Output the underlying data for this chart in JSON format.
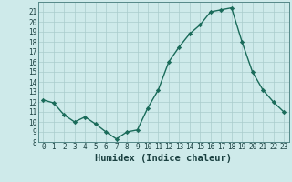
{
  "x": [
    0,
    1,
    2,
    3,
    4,
    5,
    6,
    7,
    8,
    9,
    10,
    11,
    12,
    13,
    14,
    15,
    16,
    17,
    18,
    19,
    20,
    21,
    22,
    23
  ],
  "y": [
    12.2,
    11.9,
    10.7,
    10.0,
    10.5,
    9.8,
    9.0,
    8.3,
    9.0,
    9.2,
    11.4,
    13.2,
    16.0,
    17.5,
    18.8,
    19.7,
    21.0,
    21.2,
    21.4,
    18.0,
    15.0,
    13.2,
    12.0,
    11.0
  ],
  "line_color": "#1a6b5a",
  "marker": "D",
  "marker_size": 2.2,
  "bg_color": "#ceeaea",
  "grid_color": "#aacccc",
  "xlabel": "Humidex (Indice chaleur)",
  "xlim": [
    -0.5,
    23.5
  ],
  "ylim": [
    8,
    22
  ],
  "yticks": [
    8,
    9,
    10,
    11,
    12,
    13,
    14,
    15,
    16,
    17,
    18,
    19,
    20,
    21
  ],
  "xticks": [
    0,
    1,
    2,
    3,
    4,
    5,
    6,
    7,
    8,
    9,
    10,
    11,
    12,
    13,
    14,
    15,
    16,
    17,
    18,
    19,
    20,
    21,
    22,
    23
  ],
  "xtick_labels": [
    "0",
    "1",
    "2",
    "3",
    "4",
    "5",
    "6",
    "7",
    "8",
    "9",
    "10",
    "11",
    "12",
    "13",
    "14",
    "15",
    "16",
    "17",
    "18",
    "19",
    "20",
    "21",
    "22",
    "23"
  ],
  "ytick_labels": [
    "8",
    "9",
    "10",
    "11",
    "12",
    "13",
    "14",
    "15",
    "16",
    "17",
    "18",
    "19",
    "20",
    "21"
  ],
  "tick_fontsize": 5.5,
  "xlabel_fontsize": 7.5,
  "linewidth": 1.0
}
